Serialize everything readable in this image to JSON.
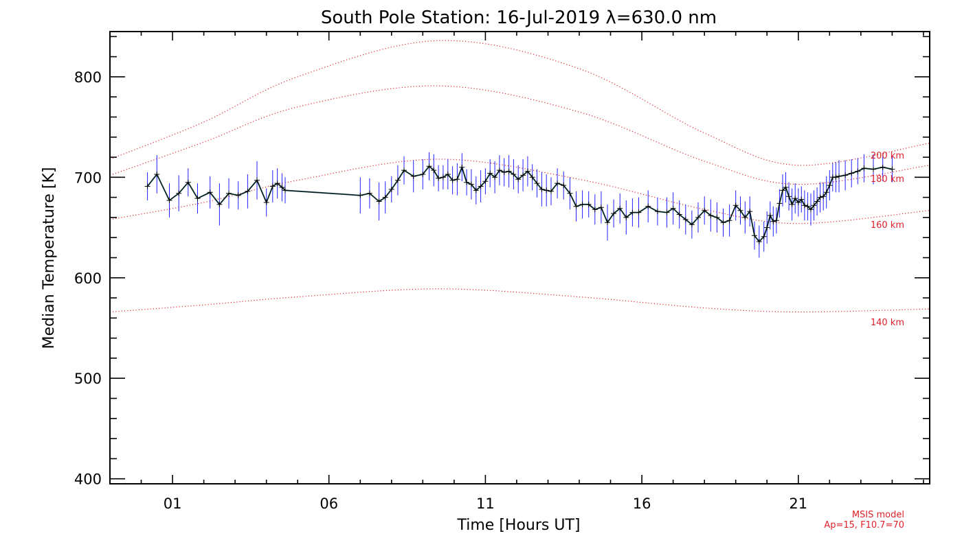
{
  "chart_data": {
    "type": "line",
    "title": "South Pole Station: 16-Jul-2019 λ=630.0 nm",
    "xlabel": "Time [Hours UT]",
    "ylabel": "Median Temperature [K]",
    "xlim": [
      -1,
      25.2
    ],
    "ylim": [
      395,
      845
    ],
    "x_ticks": [
      1,
      6,
      11,
      16,
      21
    ],
    "x_tick_labels": [
      "01",
      "06",
      "11",
      "16",
      "21"
    ],
    "y_ticks": [
      400,
      500,
      600,
      700,
      800
    ],
    "y_tick_labels": [
      "400",
      "500",
      "600",
      "700",
      "800"
    ],
    "grid": false,
    "colors": {
      "data_line": "#000000",
      "error_bar": "#2020ff",
      "model": "#e0202a",
      "connector": "#2e6f73"
    },
    "series": [
      {
        "x": [
          0.2,
          0.5,
          0.9,
          1.2,
          1.5,
          1.8,
          2.2,
          2.5,
          2.8,
          3.1,
          3.4,
          3.7,
          4.0,
          4.2,
          4.35,
          4.5,
          4.6,
          7.0,
          7.3,
          7.6,
          7.8,
          8.0,
          8.2,
          8.4,
          8.7,
          9.0,
          9.2,
          9.35,
          9.5,
          9.65,
          9.8,
          9.95,
          10.1,
          10.25,
          10.4,
          10.55,
          10.7,
          10.85,
          11.0,
          11.15,
          11.3,
          11.45,
          11.6,
          11.75,
          11.9,
          12.05,
          12.2,
          12.35,
          12.5,
          12.65,
          12.8,
          12.95,
          13.1,
          13.3,
          13.5,
          13.7,
          13.9,
          14.1,
          14.3,
          14.5,
          14.7,
          14.9,
          15.1,
          15.3,
          15.5,
          15.7,
          15.9,
          16.2,
          16.5,
          16.8,
          17.0,
          17.2,
          17.4,
          17.6,
          17.8,
          18.0,
          18.2,
          18.4,
          18.6,
          18.8,
          19.0,
          19.15,
          19.3,
          19.45,
          19.6,
          19.75,
          19.9,
          20.0,
          20.1,
          20.2,
          20.3,
          20.4,
          20.5,
          20.6,
          20.7,
          20.8,
          20.9,
          21.0,
          21.1,
          21.2,
          21.3,
          21.4,
          21.5,
          21.6,
          21.7,
          21.8,
          21.9,
          22.0,
          22.1,
          22.2,
          22.3,
          22.5,
          22.7,
          22.9,
          23.1,
          23.4,
          23.7,
          24.0
        ],
        "y": [
          691,
          703,
          677,
          684,
          695,
          679,
          685,
          673,
          684,
          682,
          686,
          697,
          675,
          691,
          694,
          690,
          687,
          682,
          684,
          676,
          680,
          688,
          697,
          707,
          701,
          703,
          711,
          707,
          699,
          700,
          703,
          697,
          698,
          710,
          695,
          693,
          687,
          691,
          696,
          704,
          700,
          707,
          705,
          706,
          703,
          698,
          702,
          706,
          700,
          694,
          688,
          687,
          686,
          694,
          692,
          684,
          671,
          673,
          673,
          668,
          670,
          655,
          664,
          669,
          660,
          665,
          665,
          671,
          666,
          665,
          669,
          663,
          658,
          653,
          660,
          667,
          662,
          660,
          655,
          657,
          672,
          667,
          660,
          666,
          642,
          636,
          641,
          650,
          662,
          656,
          657,
          674,
          687,
          690,
          681,
          673,
          679,
          675,
          678,
          672,
          671,
          668,
          672,
          676,
          680,
          681,
          685,
          692,
          700,
          700,
          701,
          702,
          704,
          706,
          709,
          708,
          710,
          708
        ],
        "err": [
          14,
          19,
          17,
          18,
          14,
          15,
          16,
          21,
          15,
          14,
          17,
          19,
          14,
          16,
          15,
          14,
          13,
          18,
          15,
          19,
          16,
          13,
          15,
          14,
          16,
          15,
          14,
          16,
          13,
          12,
          15,
          14,
          16,
          14,
          13,
          15,
          14,
          16,
          13,
          14,
          16,
          15,
          14,
          16,
          15,
          14,
          16,
          15,
          13,
          14,
          17,
          16,
          14,
          15,
          14,
          16,
          15,
          14,
          13,
          15,
          16,
          18,
          14,
          15,
          17,
          14,
          15,
          16,
          14,
          15,
          16,
          14,
          15,
          14,
          15,
          14,
          16,
          15,
          14,
          16,
          15,
          14,
          16,
          15,
          14,
          16,
          15,
          16,
          14,
          15,
          13,
          14,
          16,
          15,
          14,
          16,
          15,
          14,
          13,
          15,
          14,
          16,
          15,
          14,
          15,
          14,
          16,
          15,
          14,
          15,
          16,
          15,
          14,
          13,
          14,
          15,
          14,
          13
        ]
      }
    ],
    "model_curves": [
      {
        "name": "140 km",
        "x": [
          -1,
          2,
          5,
          9.5,
          14,
          18,
          21,
          25.2
        ],
        "y": [
          566,
          573,
          581,
          589,
          581,
          570,
          566,
          569
        ]
      },
      {
        "name": "160 km",
        "x": [
          -1,
          2,
          5,
          9.5,
          14,
          18,
          21,
          25.2
        ],
        "y": [
          658,
          675,
          697,
          718,
          698,
          668,
          654,
          667
        ]
      },
      {
        "name": "180 km",
        "x": [
          -1,
          2,
          5,
          9.5,
          14,
          18,
          21,
          25.2
        ],
        "y": [
          702,
          735,
          770,
          791,
          765,
          716,
          693,
          712
        ]
      },
      {
        "name": "200 km",
        "x": [
          -1,
          2,
          5,
          9.5,
          14,
          18,
          21,
          25.2
        ],
        "y": [
          718,
          755,
          800,
          836,
          808,
          744,
          712,
          734
        ]
      }
    ],
    "model_labels": [
      "200 km",
      "180 km",
      "160 km",
      "140 km"
    ],
    "annotation": [
      "MSIS model",
      "Ap=15, F10.7=70"
    ]
  }
}
